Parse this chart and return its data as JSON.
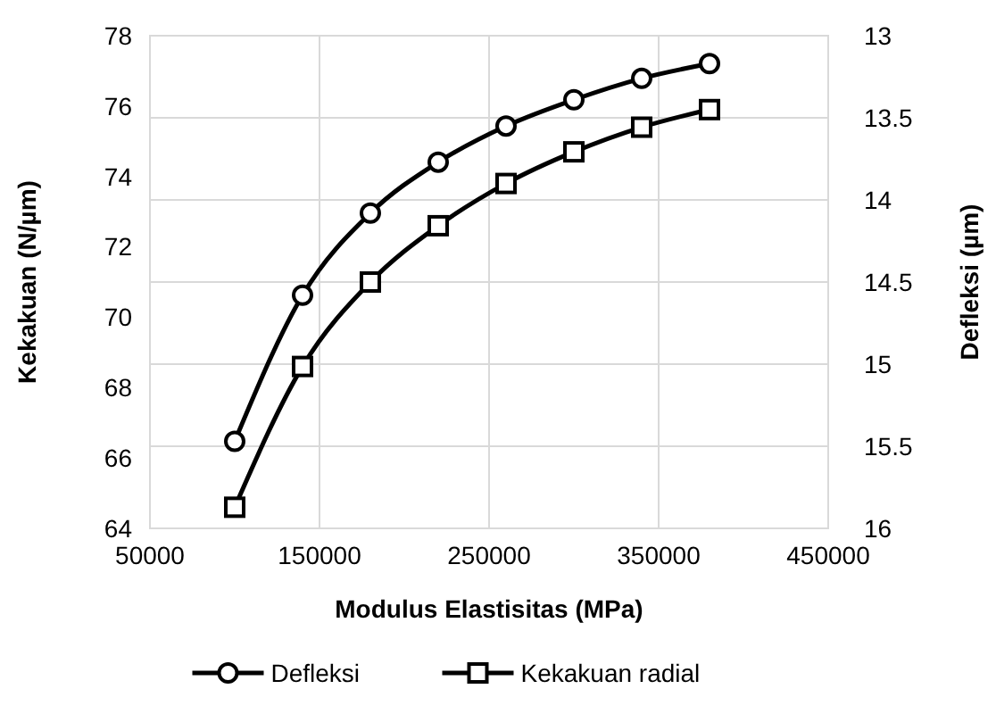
{
  "chart_data": {
    "type": "line",
    "xlabel": "Modulus Elastisitas (MPa)",
    "ylabel": "Kekakuan (N/µm)",
    "y2label": "Defleksi (µm)",
    "x": [
      100000,
      140000,
      180000,
      220000,
      260000,
      300000,
      340000,
      380000
    ],
    "series": [
      {
        "name": "Defleksi",
        "color": "#000000",
        "axis": "y2",
        "marker": "circle",
        "values": [
          15.47,
          14.58,
          14.08,
          13.77,
          13.55,
          13.39,
          13.26,
          13.17
        ]
      },
      {
        "name": "Kekakuan radial",
        "color": "#000000",
        "marker": "square",
        "values": [
          64.6,
          68.6,
          71.0,
          72.6,
          73.8,
          74.7,
          75.4,
          75.9
        ]
      }
    ],
    "xlim": [
      50000,
      450000
    ],
    "xticks": [
      50000,
      150000,
      250000,
      350000,
      450000
    ],
    "ylim": [
      64,
      78
    ],
    "yticks": [
      64,
      66,
      68,
      70,
      72,
      74,
      76,
      78
    ],
    "y2lim": [
      16,
      13
    ],
    "y2ticks": [
      13,
      13.5,
      14,
      14.5,
      15,
      15.5,
      16
    ],
    "grid": true,
    "legend": "bottom",
    "line_style": "solid"
  }
}
